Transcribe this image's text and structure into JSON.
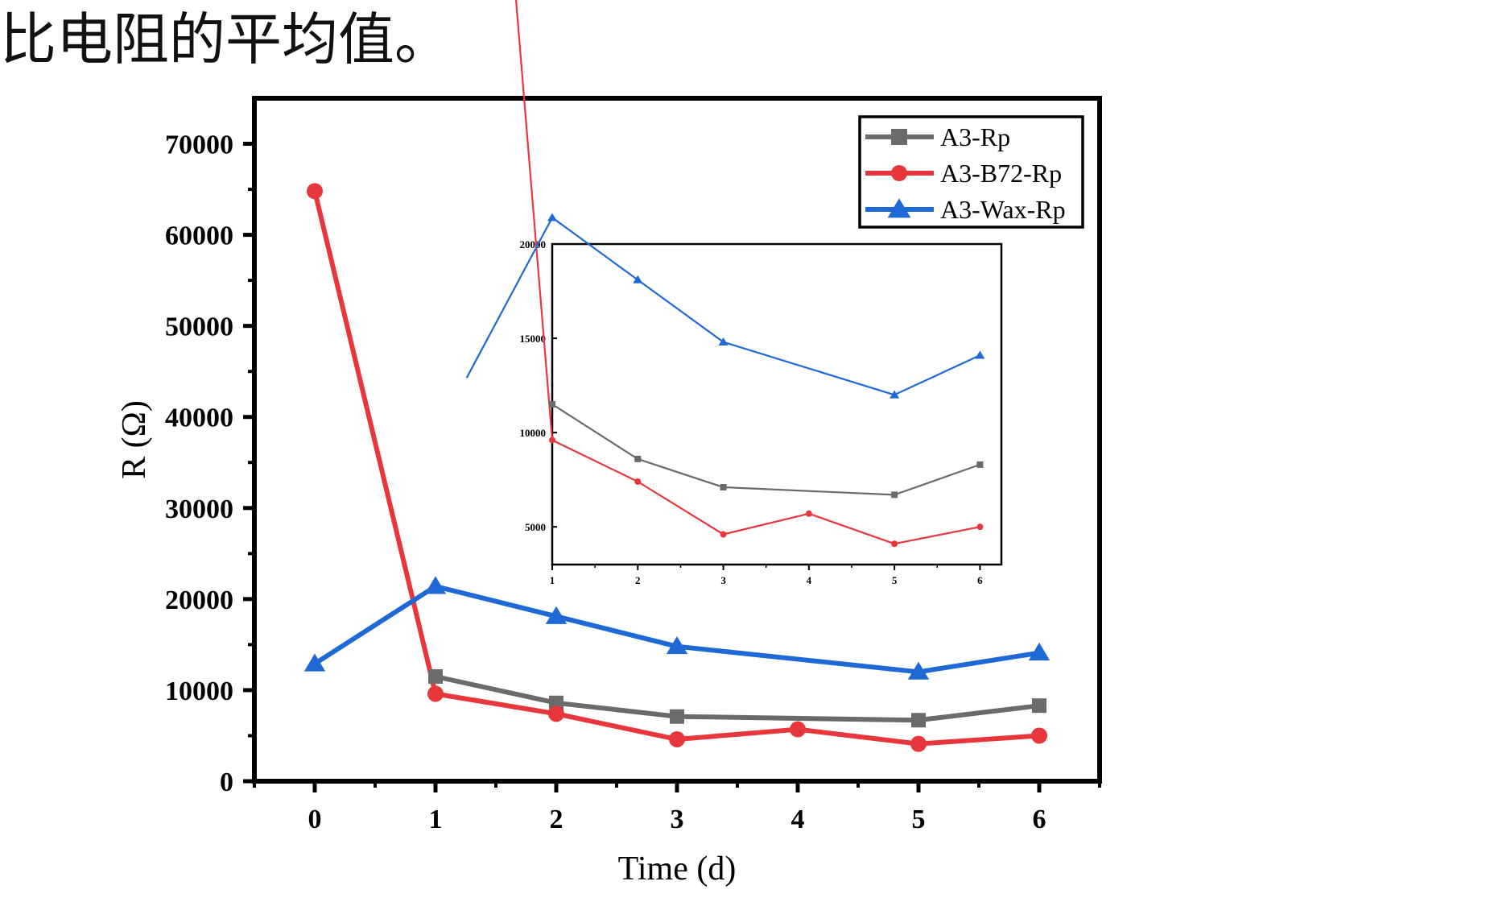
{
  "caption": "比电阻的平均值。",
  "chart_data": {
    "type": "line",
    "xlabel": "Time (d)",
    "ylabel": "R (Ω)",
    "xlim": [
      -0.5,
      6.5
    ],
    "ylim": [
      0,
      75000
    ],
    "xticks": [
      0,
      1,
      2,
      3,
      4,
      5,
      6
    ],
    "yticks": [
      0,
      10000,
      20000,
      30000,
      40000,
      50000,
      60000,
      70000
    ],
    "legend_position": "top-right",
    "series": [
      {
        "name": "A3-Rp",
        "color": "#6b6b6b",
        "marker": "square",
        "x": [
          1,
          2,
          3,
          5,
          6
        ],
        "values": [
          11500,
          8600,
          7100,
          6700,
          8300
        ]
      },
      {
        "name": "A3-B72-Rp",
        "color": "#e8373c",
        "marker": "circle",
        "x": [
          0,
          1,
          2,
          3,
          4,
          5,
          6
        ],
        "values": [
          64800,
          9600,
          7400,
          4600,
          5700,
          4100,
          5000
        ]
      },
      {
        "name": "A3-Wax-Rp",
        "color": "#1f69d6",
        "marker": "triangle",
        "x": [
          0,
          1,
          2,
          3,
          5,
          6
        ],
        "values": [
          12900,
          21400,
          18100,
          14800,
          12000,
          14100
        ]
      }
    ],
    "inset": {
      "xlim": [
        1,
        6.25
      ],
      "ylim": [
        3000,
        20000
      ],
      "xticks": [
        1,
        2,
        3,
        4,
        5,
        6
      ],
      "yticks": [
        5000,
        10000,
        15000,
        20000
      ]
    }
  }
}
